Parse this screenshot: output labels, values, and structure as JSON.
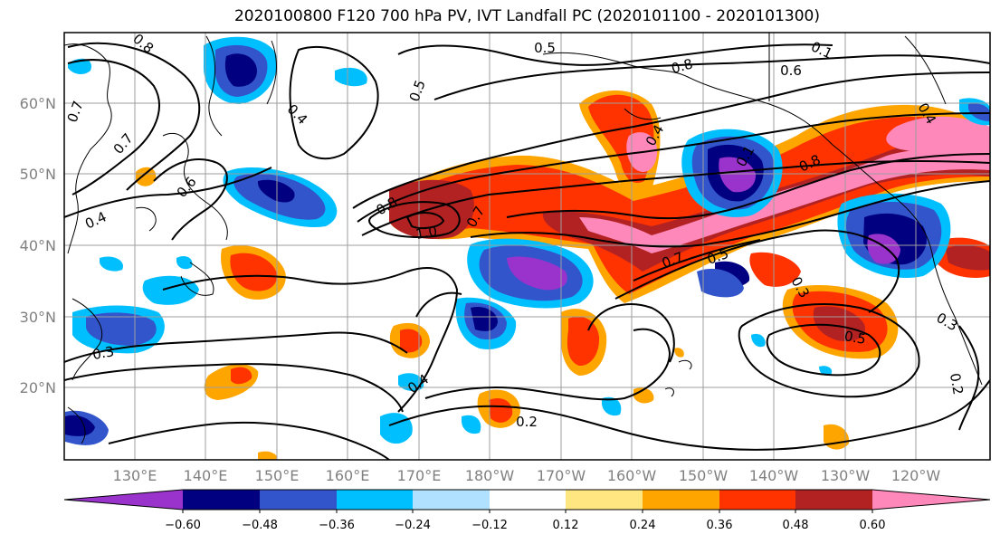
{
  "title": "2020100800 F120 700 hPa PV, IVT Landfall PC (2020101100 - 2020101300)",
  "map": {
    "lon_labels": [
      "130°E",
      "140°E",
      "150°E",
      "160°E",
      "170°E",
      "180°W",
      "170°W",
      "160°W",
      "150°W",
      "140°W",
      "130°W",
      "120°W"
    ],
    "lat_labels": [
      "60°N",
      "50°N",
      "40°N",
      "30°N",
      "20°N"
    ],
    "contour_labels": [
      "0.8",
      "0.7",
      "0.7",
      "0.4",
      "0.6",
      "0.5",
      "0.5",
      "0.4",
      "0.8",
      "0.6",
      "0.1",
      "0.8",
      "1.0",
      "0.7",
      "0.7",
      "0.5",
      "0.8",
      "0.4",
      "0.3",
      "0.5",
      "0.3",
      "0.3",
      "0.4",
      "0.2",
      "0.2",
      "0.4",
      "0.1"
    ]
  },
  "colorbar": {
    "ticks": [
      "−0.60",
      "−0.48",
      "−0.36",
      "−0.24",
      "−0.12",
      "0.12",
      "0.24",
      "0.36",
      "0.48",
      "0.60"
    ],
    "colors": [
      "#9933cc",
      "#000080",
      "#3355cc",
      "#00bfff",
      "#b0e2ff",
      "#ffffff",
      "#ffe680",
      "#ffa500",
      "#ff3300",
      "#b22222",
      "#ff88bb"
    ]
  },
  "palette": {
    "pink": "#ff88bb",
    "dark_red": "#b22222",
    "red_orange": "#ff3300",
    "orange": "#ffa500",
    "yellow": "#ffe680",
    "light_blue": "#b0e2ff",
    "sky_blue": "#00bfff",
    "mid_blue": "#3355cc",
    "navy": "#000080",
    "purple": "#9933cc"
  }
}
